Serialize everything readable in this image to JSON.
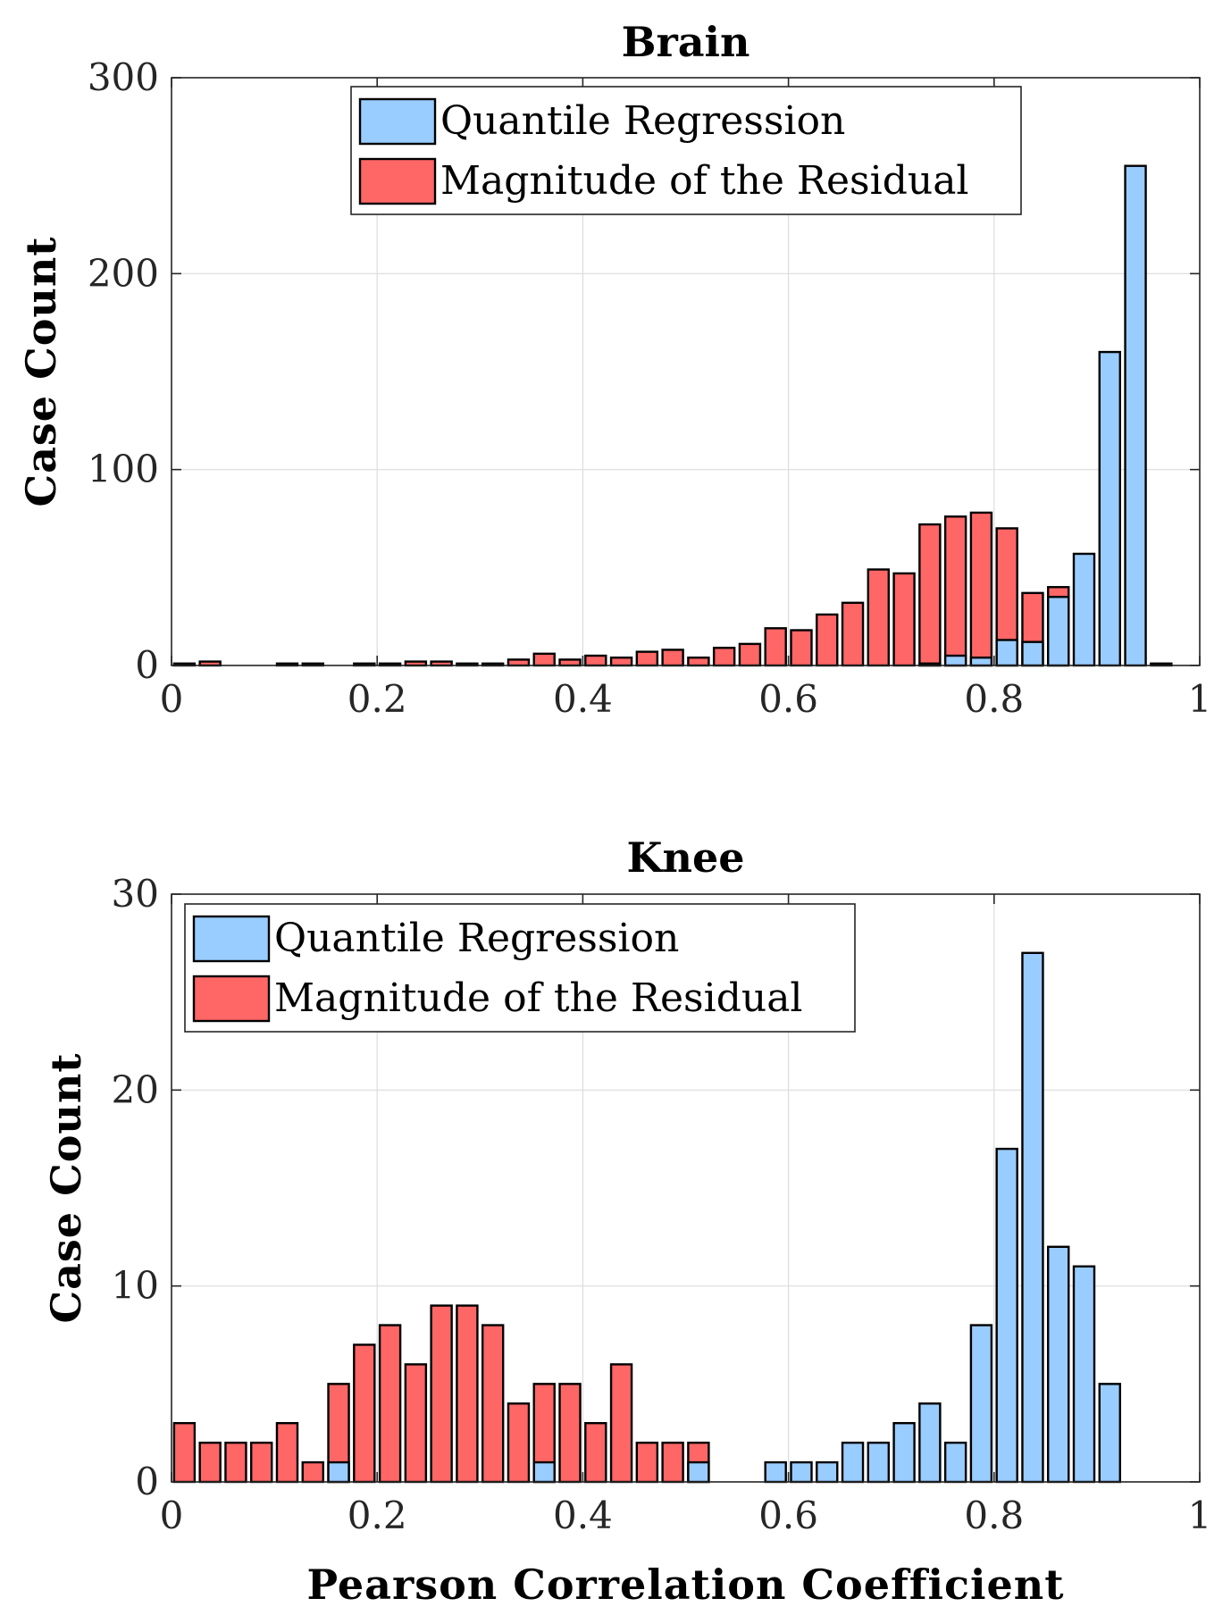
{
  "chart_data": [
    {
      "type": "bar",
      "title": "Brain",
      "xlabel": "",
      "ylabel": "Case Count",
      "xlim": [
        0,
        1
      ],
      "ylim": [
        0,
        300
      ],
      "xticks": [
        "0",
        "0.2",
        "0.4",
        "0.6",
        "0.8",
        "1"
      ],
      "yticks": [
        "0",
        "100",
        "200",
        "300"
      ],
      "grid": true,
      "legend_position": "top-center",
      "bin_width": 0.025,
      "x": [
        0.0125,
        0.0375,
        0.0625,
        0.0875,
        0.1125,
        0.1375,
        0.1625,
        0.1875,
        0.2125,
        0.2375,
        0.2625,
        0.2875,
        0.3125,
        0.3375,
        0.3625,
        0.3875,
        0.4125,
        0.4375,
        0.4625,
        0.4875,
        0.5125,
        0.5375,
        0.5625,
        0.5875,
        0.6125,
        0.6375,
        0.6625,
        0.6875,
        0.7125,
        0.7375,
        0.7625,
        0.7875,
        0.8125,
        0.8375,
        0.8625,
        0.8875,
        0.9125,
        0.9375,
        0.9625,
        0.9875
      ],
      "series": [
        {
          "name": "Quantile Regression",
          "color": "#99ccff",
          "values": [
            0,
            0,
            0,
            0,
            0,
            0,
            0,
            0,
            0,
            0,
            0,
            0,
            0,
            0,
            0,
            0,
            0,
            0,
            0,
            0,
            0,
            0,
            0,
            0,
            0,
            0,
            0,
            0,
            0,
            1,
            5,
            4,
            13,
            12,
            35,
            57,
            160,
            255,
            1,
            0
          ]
        },
        {
          "name": "Magnitude of the Residual",
          "color": "#ff6666",
          "values": [
            1,
            2,
            0,
            0,
            1,
            1,
            0,
            1,
            1,
            2,
            2,
            1,
            1,
            3,
            6,
            3,
            5,
            4,
            7,
            8,
            4,
            9,
            11,
            19,
            18,
            26,
            32,
            49,
            47,
            72,
            76,
            78,
            70,
            37,
            40,
            0,
            0,
            0,
            0,
            0
          ]
        }
      ]
    },
    {
      "type": "bar",
      "title": "Knee",
      "xlabel": "Pearson Correlation Coefficient",
      "ylabel": "Case Count",
      "xlim": [
        0,
        1
      ],
      "ylim": [
        0,
        30
      ],
      "xticks": [
        "0",
        "0.2",
        "0.4",
        "0.6",
        "0.8",
        "1"
      ],
      "yticks": [
        "0",
        "10",
        "20",
        "30"
      ],
      "grid": true,
      "legend_position": "top-left",
      "bin_width": 0.025,
      "x": [
        0.0125,
        0.0375,
        0.0625,
        0.0875,
        0.1125,
        0.1375,
        0.1625,
        0.1875,
        0.2125,
        0.2375,
        0.2625,
        0.2875,
        0.3125,
        0.3375,
        0.3625,
        0.3875,
        0.4125,
        0.4375,
        0.4625,
        0.4875,
        0.5125,
        0.5375,
        0.5625,
        0.5875,
        0.6125,
        0.6375,
        0.6625,
        0.6875,
        0.7125,
        0.7375,
        0.7625,
        0.7875,
        0.8125,
        0.8375,
        0.8625,
        0.8875,
        0.9125,
        0.9375,
        0.9625,
        0.9875
      ],
      "series": [
        {
          "name": "Quantile Regression",
          "color": "#99ccff",
          "values": [
            0,
            0,
            0,
            0,
            0,
            0,
            1,
            0,
            0,
            0,
            0,
            0,
            0,
            0,
            1,
            0,
            0,
            0,
            0,
            0,
            1,
            0,
            0,
            1,
            1,
            1,
            2,
            2,
            3,
            4,
            2,
            8,
            17,
            27,
            12,
            11,
            5,
            0,
            0,
            0
          ]
        },
        {
          "name": "Magnitude of the Residual",
          "color": "#ff6666",
          "values": [
            3,
            2,
            2,
            2,
            3,
            1,
            5,
            7,
            8,
            6,
            9,
            9,
            8,
            4,
            5,
            5,
            3,
            6,
            2,
            2,
            2,
            0,
            0,
            0,
            0,
            0,
            0,
            0,
            0,
            0,
            0,
            0,
            0,
            0,
            0,
            0,
            0,
            0,
            0,
            0
          ]
        }
      ]
    }
  ]
}
